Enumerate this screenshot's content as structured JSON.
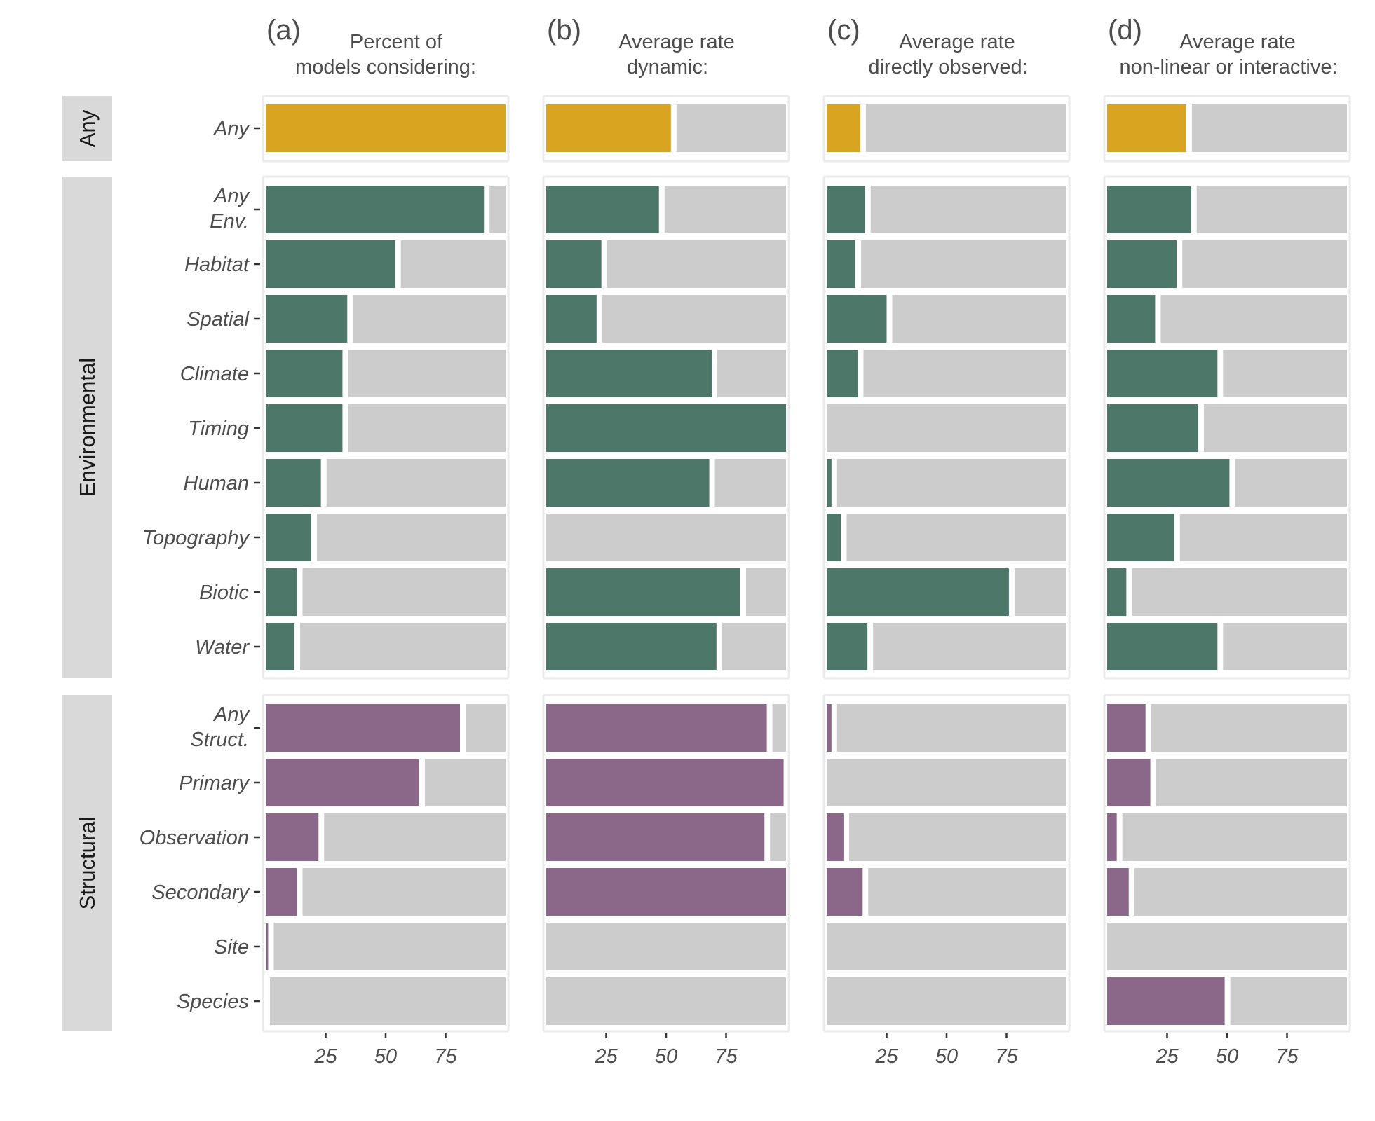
{
  "colors": {
    "any": "#D9A521",
    "environmental": "#4D7768",
    "structural": "#8B6789",
    "remainder": "#CCCCCC",
    "strip": "#D9D9D9"
  },
  "chart_data": {
    "type": "bar",
    "orientation": "horizontal",
    "x_ticks": [
      "25",
      "50",
      "75"
    ],
    "xlim": [
      0,
      100
    ],
    "groups": [
      {
        "name": "Any",
        "color_key": "any",
        "rows": [
          "Any"
        ]
      },
      {
        "name": "Environmental",
        "color_key": "environmental",
        "rows": [
          "Any Env.",
          "Habitat",
          "Spatial",
          "Climate",
          "Timing",
          "Human",
          "Topography",
          "Biotic",
          "Water"
        ]
      },
      {
        "name": "Structural",
        "color_key": "structural",
        "rows": [
          "Any Struct.",
          "Primary",
          "Observation",
          "Secondary",
          "Site",
          "Species"
        ]
      }
    ],
    "panels": [
      {
        "letter": "(a)",
        "title": "Percent of models considering:",
        "values": [
          100,
          91,
          54,
          34,
          32,
          32,
          23,
          19,
          13,
          12,
          81,
          64,
          22,
          13,
          1,
          0
        ]
      },
      {
        "letter": "(b)",
        "title": "Average rate dynamic:",
        "values": [
          52,
          47,
          23,
          21,
          69,
          100,
          68,
          0,
          81,
          71,
          92,
          99,
          91,
          100,
          0,
          0
        ]
      },
      {
        "letter": "(c)",
        "title": "Average rate directly observed:",
        "values": [
          14,
          16,
          12,
          25,
          13,
          0,
          2,
          6,
          76,
          17,
          2,
          0,
          7,
          15,
          0,
          0
        ]
      },
      {
        "letter": "(d)",
        "title": "Average rate non-linear or interactive:",
        "values": [
          33,
          35,
          29,
          20,
          46,
          38,
          51,
          28,
          8,
          46,
          16,
          18,
          4,
          9,
          0,
          49
        ]
      }
    ]
  }
}
